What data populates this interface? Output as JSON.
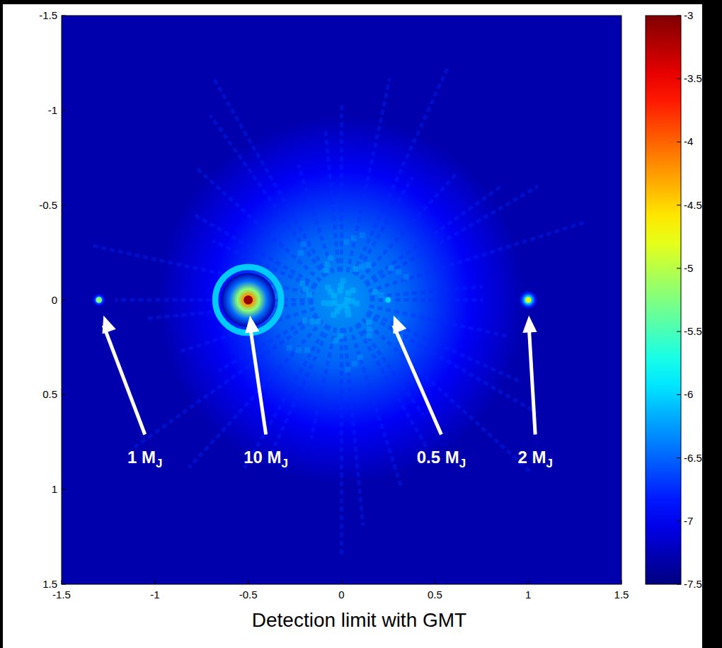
{
  "chart_data": {
    "type": "scatter",
    "caption": "Detection limit with GMT",
    "x": [
      -1.3,
      -0.5,
      0.25,
      1.0
    ],
    "values": [
      0,
      0,
      0,
      0
    ],
    "labels": [
      "1 MJ",
      "10 MJ",
      "0.5 MJ",
      "2 MJ"
    ],
    "intensity": [
      -5.2,
      -3.1,
      -6.0,
      -4.8
    ],
    "background": -7.3,
    "halo": {
      "x": 0,
      "y": 0,
      "intensity": -6.2
    },
    "xlim": [
      -1.5,
      1.5
    ],
    "ylim": [
      1.5,
      -1.5
    ],
    "xticks": [
      -1.5,
      -1,
      -0.5,
      0,
      0.5,
      1,
      1.5
    ],
    "yticks": [
      -1.5,
      -1,
      -0.5,
      0,
      0.5,
      1,
      1.5
    ],
    "colorbar": {
      "range": [
        -7.5,
        -3
      ],
      "ticks": [
        -3,
        -3.5,
        -4,
        -4.5,
        -5,
        -5.5,
        -6,
        -6.5,
        -7,
        -7.5
      ]
    }
  }
}
